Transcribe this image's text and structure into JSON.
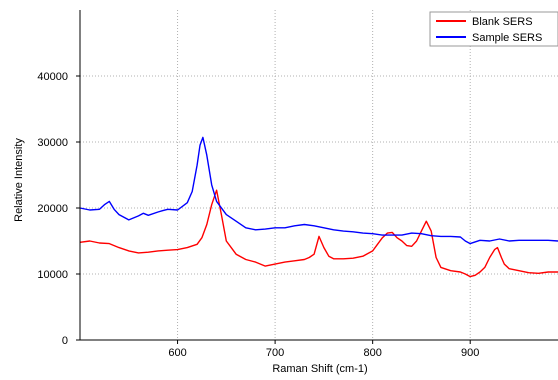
{
  "chart_data": {
    "type": "line",
    "xlabel": "Raman Shift (cm-1)",
    "ylabel": "Relative Intensity",
    "xlim": [
      500,
      990
    ],
    "ylim": [
      0,
      50000
    ],
    "x_ticks": [
      600,
      700,
      800,
      900
    ],
    "y_ticks": [
      0,
      10000,
      20000,
      30000,
      40000
    ],
    "x_tick_labels": [
      "600",
      "700",
      "800",
      "900"
    ],
    "y_tick_labels": [
      "0",
      "10000",
      "20000",
      "30000",
      "40000"
    ],
    "grid": true,
    "legend_position": "top-right",
    "series": [
      {
        "name": "Blank SERS",
        "color": "#ff0000",
        "x": [
          500,
          510,
          520,
          530,
          540,
          550,
          560,
          570,
          580,
          590,
          600,
          610,
          620,
          625,
          630,
          635,
          640,
          645,
          650,
          655,
          660,
          670,
          680,
          690,
          700,
          710,
          720,
          730,
          735,
          740,
          745,
          750,
          755,
          760,
          770,
          780,
          790,
          800,
          805,
          810,
          815,
          820,
          825,
          830,
          835,
          840,
          845,
          850,
          855,
          860,
          865,
          870,
          880,
          890,
          895,
          900,
          905,
          910,
          915,
          920,
          925,
          928,
          932,
          935,
          940,
          950,
          960,
          970,
          980,
          990
        ],
        "y": [
          14800,
          15000,
          14700,
          14600,
          14000,
          13500,
          13200,
          13300,
          13500,
          13600,
          13700,
          14000,
          14500,
          15500,
          17500,
          20500,
          22700,
          19000,
          15000,
          14000,
          13000,
          12200,
          11800,
          11200,
          11500,
          11800,
          12000,
          12200,
          12500,
          13000,
          15700,
          14000,
          12700,
          12300,
          12300,
          12400,
          12700,
          13500,
          14500,
          15500,
          16200,
          16300,
          15500,
          15000,
          14300,
          14200,
          15000,
          16500,
          18000,
          16500,
          12500,
          11000,
          10500,
          10300,
          10000,
          9600,
          9800,
          10300,
          11000,
          12500,
          13700,
          14000,
          12500,
          11500,
          10800,
          10500,
          10200,
          10100,
          10300,
          10300
        ]
      },
      {
        "name": "Sample SERS",
        "color": "#0000ff",
        "x": [
          500,
          510,
          520,
          525,
          530,
          535,
          540,
          550,
          560,
          565,
          570,
          580,
          585,
          590,
          600,
          610,
          615,
          620,
          623,
          626,
          630,
          635,
          640,
          650,
          660,
          670,
          680,
          690,
          700,
          710,
          720,
          730,
          740,
          750,
          760,
          770,
          780,
          790,
          800,
          810,
          820,
          830,
          840,
          850,
          860,
          870,
          880,
          890,
          895,
          900,
          910,
          920,
          930,
          940,
          950,
          960,
          970,
          980,
          990
        ],
        "y": [
          20000,
          19700,
          19800,
          20500,
          21000,
          19800,
          19000,
          18200,
          18800,
          19200,
          18900,
          19400,
          19600,
          19800,
          19700,
          20800,
          22500,
          26500,
          29500,
          30700,
          28000,
          23500,
          21000,
          19000,
          18000,
          17000,
          16700,
          16800,
          17000,
          17000,
          17300,
          17500,
          17300,
          17000,
          16700,
          16500,
          16400,
          16200,
          16100,
          15900,
          15900,
          15900,
          16200,
          16100,
          15800,
          15700,
          15700,
          15600,
          15000,
          14600,
          15100,
          15000,
          15300,
          15000,
          15100,
          15100,
          15100,
          15100,
          15000
        ]
      }
    ]
  }
}
